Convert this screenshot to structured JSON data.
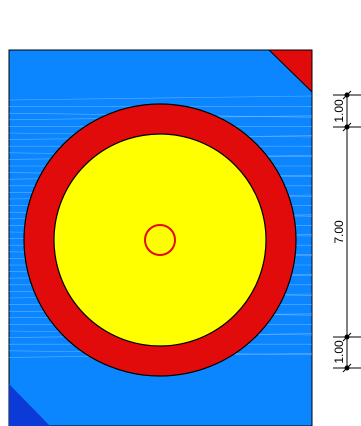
{
  "colors": {
    "background": "#ffffff",
    "field": "#0b86ff",
    "field_hatch": "#a7d1ff",
    "corner_top_right": "#e10b0b",
    "corner_bottom_left": "#0b3ad7",
    "outer_ring": "#e10b0b",
    "inner_disc": "#ffff00",
    "center_mark": "#e10b0b",
    "outline": "#000000"
  },
  "dimensions": {
    "top_band": "1.00",
    "middle_span": "7.00",
    "bottom_band": "1.00"
  }
}
